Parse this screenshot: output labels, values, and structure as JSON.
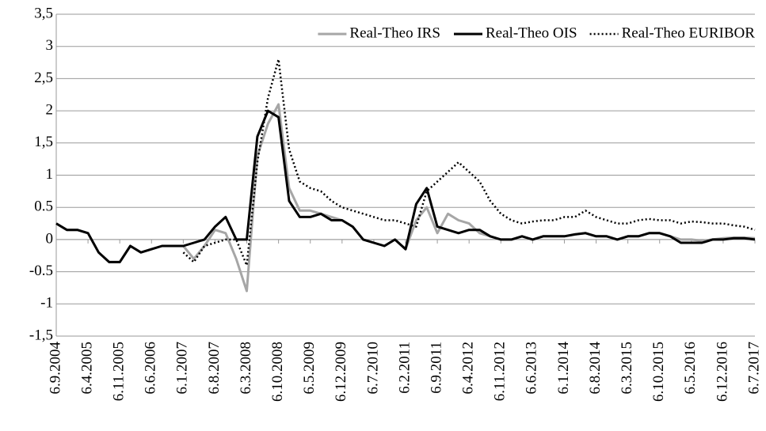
{
  "chart_data": {
    "type": "line",
    "categories": [
      "6.9.2004",
      null,
      null,
      "6.4.2005",
      null,
      null,
      "6.11.2005",
      null,
      null,
      "6.6.2006",
      null,
      null,
      "6.1.2007",
      null,
      null,
      "6.8.2007",
      null,
      null,
      "6.3.2008",
      null,
      null,
      "6.10.2008",
      null,
      null,
      "6.5.2009",
      null,
      null,
      "6.12.2009",
      null,
      null,
      "6.7.2010",
      null,
      null,
      "6.2.2011",
      null,
      null,
      "6.9.2011",
      null,
      null,
      "6.4.2012",
      null,
      null,
      "6.11.2012",
      null,
      null,
      "6.6.2013",
      null,
      null,
      "6.1.2014",
      null,
      null,
      "6.8.2014",
      null,
      null,
      "6.3.2015",
      null,
      null,
      "6.10.2015",
      null,
      null,
      "6.5.2016",
      null,
      null,
      "6.12.2016",
      null,
      null,
      "6.7.2017"
    ],
    "series": [
      {
        "name": "Real-Theo IRS",
        "color": "#a6a6a6",
        "line_style": "solid",
        "values": [
          0.25,
          0.15,
          0.15,
          0.1,
          -0.2,
          -0.35,
          -0.35,
          -0.1,
          -0.2,
          -0.15,
          -0.1,
          -0.1,
          -0.1,
          -0.3,
          -0.1,
          0.15,
          0.1,
          -0.3,
          -0.8,
          1.3,
          1.8,
          2.1,
          0.8,
          0.45,
          0.45,
          0.4,
          0.35,
          0.3,
          0.2,
          0.0,
          -0.05,
          -0.1,
          0.0,
          -0.15,
          0.3,
          0.5,
          0.1,
          0.4,
          0.3,
          0.25,
          0.1,
          0.05,
          0.0,
          0.0,
          0.05,
          0.0,
          0.05,
          0.05,
          0.05,
          0.08,
          0.1,
          0.05,
          0.05,
          0.0,
          0.05,
          0.05,
          0.1,
          0.1,
          0.05,
          0.0,
          0.0,
          -0.02,
          0.0,
          0.02,
          0.03,
          0.03,
          0.02
        ]
      },
      {
        "name": "Real-Theo OIS",
        "color": "#000000",
        "line_style": "solid",
        "values": [
          0.25,
          0.15,
          0.15,
          0.1,
          -0.2,
          -0.35,
          -0.35,
          -0.1,
          -0.2,
          -0.15,
          -0.1,
          -0.1,
          -0.1,
          -0.05,
          0.0,
          0.2,
          0.35,
          0.0,
          0.0,
          1.6,
          2.0,
          1.9,
          0.6,
          0.35,
          0.35,
          0.4,
          0.3,
          0.3,
          0.2,
          0.0,
          -0.05,
          -0.1,
          0.0,
          -0.15,
          0.55,
          0.8,
          0.2,
          0.15,
          0.1,
          0.15,
          0.15,
          0.05,
          0.0,
          0.0,
          0.05,
          0.0,
          0.05,
          0.05,
          0.05,
          0.08,
          0.1,
          0.05,
          0.05,
          0.0,
          0.05,
          0.05,
          0.1,
          0.1,
          0.05,
          -0.05,
          -0.05,
          -0.05,
          0.0,
          0.0,
          0.02,
          0.02,
          0.0
        ]
      },
      {
        "name": "Real-Theo EURIBOR",
        "color": "#000000",
        "line_style": "dotted",
        "values": [
          null,
          null,
          null,
          null,
          null,
          null,
          null,
          null,
          null,
          null,
          null,
          null,
          -0.2,
          -0.35,
          -0.1,
          -0.05,
          0.0,
          0.0,
          -0.4,
          1.2,
          2.2,
          2.8,
          1.4,
          0.9,
          0.8,
          0.75,
          0.6,
          0.5,
          0.45,
          0.4,
          0.35,
          0.3,
          0.3,
          0.25,
          0.2,
          0.75,
          0.9,
          1.05,
          1.2,
          1.05,
          0.9,
          0.6,
          0.4,
          0.3,
          0.25,
          0.28,
          0.3,
          0.3,
          0.35,
          0.35,
          0.45,
          0.35,
          0.3,
          0.25,
          0.25,
          0.3,
          0.32,
          0.3,
          0.3,
          0.25,
          0.28,
          0.27,
          0.25,
          0.25,
          0.22,
          0.2,
          0.15
        ]
      }
    ],
    "ylim": [
      -1.5,
      3.5
    ],
    "yticks": [
      {
        "value": -1.5,
        "label": "-1,5"
      },
      -1,
      {
        "value": -0.5,
        "label": "-0.5"
      },
      0,
      {
        "value": 0.5,
        "label": "0.5"
      },
      1,
      {
        "value": 1.5,
        "label": "1,5"
      },
      2,
      {
        "value": 2.5,
        "label": "2,5"
      },
      3,
      {
        "value": 3.5,
        "label": "3,5"
      }
    ],
    "grid": true,
    "legend": "top-right"
  }
}
